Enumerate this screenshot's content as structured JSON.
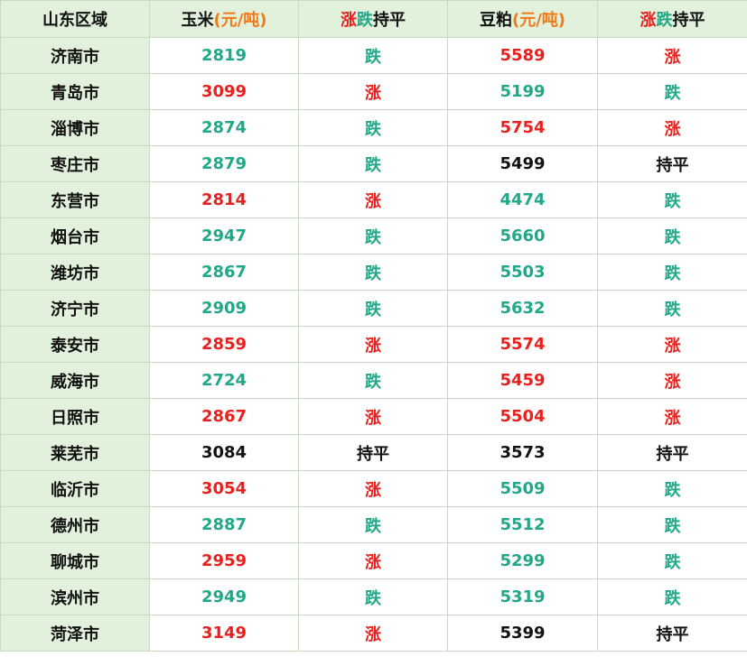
{
  "header": {
    "region": "山东区域",
    "corn_name": "玉米",
    "corn_unit": "(元/吨)",
    "corn_trend_up": "涨",
    "corn_trend_down": "跌",
    "corn_trend_flat": "持平",
    "meal_name": "豆粕",
    "meal_unit": "(元/吨)",
    "meal_trend_up": "涨",
    "meal_trend_down": "跌",
    "meal_trend_flat": "持平"
  },
  "colors": {
    "up": "#e8211f",
    "down": "#22a889",
    "flat": "#111111",
    "unit": "#f07a1a",
    "region_bg": "#e2f1dc"
  },
  "rows": [
    {
      "city": "济南市",
      "corn": "2819",
      "corn_trend": "跌",
      "corn_dir": "down",
      "meal": "5589",
      "meal_trend": "涨",
      "meal_dir": "up"
    },
    {
      "city": "青岛市",
      "corn": "3099",
      "corn_trend": "涨",
      "corn_dir": "up",
      "meal": "5199",
      "meal_trend": "跌",
      "meal_dir": "down"
    },
    {
      "city": "淄博市",
      "corn": "2874",
      "corn_trend": "跌",
      "corn_dir": "down",
      "meal": "5754",
      "meal_trend": "涨",
      "meal_dir": "up"
    },
    {
      "city": "枣庄市",
      "corn": "2879",
      "corn_trend": "跌",
      "corn_dir": "down",
      "meal": "5499",
      "meal_trend": "持平",
      "meal_dir": "flat"
    },
    {
      "city": "东营市",
      "corn": "2814",
      "corn_trend": "涨",
      "corn_dir": "up",
      "meal": "4474",
      "meal_trend": "跌",
      "meal_dir": "down"
    },
    {
      "city": "烟台市",
      "corn": "2947",
      "corn_trend": "跌",
      "corn_dir": "down",
      "meal": "5660",
      "meal_trend": "跌",
      "meal_dir": "down"
    },
    {
      "city": "潍坊市",
      "corn": "2867",
      "corn_trend": "跌",
      "corn_dir": "down",
      "meal": "5503",
      "meal_trend": "跌",
      "meal_dir": "down"
    },
    {
      "city": "济宁市",
      "corn": "2909",
      "corn_trend": "跌",
      "corn_dir": "down",
      "meal": "5632",
      "meal_trend": "跌",
      "meal_dir": "down"
    },
    {
      "city": "泰安市",
      "corn": "2859",
      "corn_trend": "涨",
      "corn_dir": "up",
      "meal": "5574",
      "meal_trend": "涨",
      "meal_dir": "up"
    },
    {
      "city": "威海市",
      "corn": "2724",
      "corn_trend": "跌",
      "corn_dir": "down",
      "meal": "5459",
      "meal_trend": "涨",
      "meal_dir": "up"
    },
    {
      "city": "日照市",
      "corn": "2867",
      "corn_trend": "涨",
      "corn_dir": "up",
      "meal": "5504",
      "meal_trend": "涨",
      "meal_dir": "up"
    },
    {
      "city": "莱芜市",
      "corn": "3084",
      "corn_trend": "持平",
      "corn_dir": "flat",
      "meal": "3573",
      "meal_trend": "持平",
      "meal_dir": "flat"
    },
    {
      "city": "临沂市",
      "corn": "3054",
      "corn_trend": "涨",
      "corn_dir": "up",
      "meal": "5509",
      "meal_trend": "跌",
      "meal_dir": "down"
    },
    {
      "city": "德州市",
      "corn": "2887",
      "corn_trend": "跌",
      "corn_dir": "down",
      "meal": "5512",
      "meal_trend": "跌",
      "meal_dir": "down"
    },
    {
      "city": "聊城市",
      "corn": "2959",
      "corn_trend": "涨",
      "corn_dir": "up",
      "meal": "5299",
      "meal_trend": "跌",
      "meal_dir": "down"
    },
    {
      "city": "滨州市",
      "corn": "2949",
      "corn_trend": "跌",
      "corn_dir": "down",
      "meal": "5319",
      "meal_trend": "跌",
      "meal_dir": "down"
    },
    {
      "city": "菏泽市",
      "corn": "3149",
      "corn_trend": "涨",
      "corn_dir": "up",
      "meal": "5399",
      "meal_trend": "持平",
      "meal_dir": "flat"
    }
  ]
}
